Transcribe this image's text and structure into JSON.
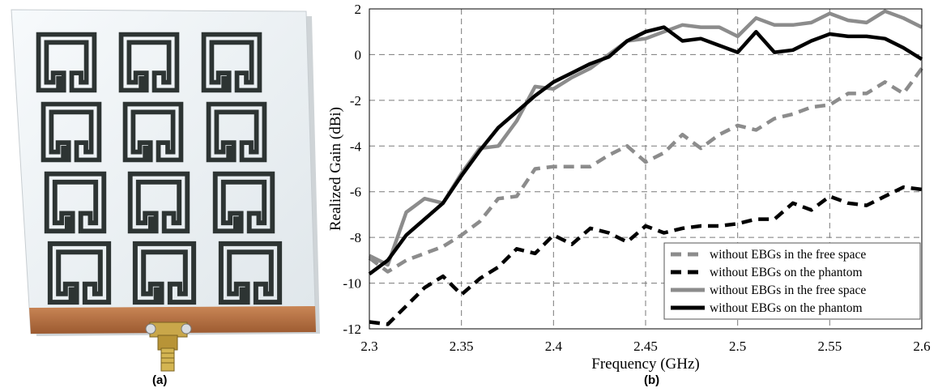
{
  "panels": {
    "a_label": "(a)",
    "b_label": "(b)"
  },
  "colors": {
    "gray": "#8c8c8c",
    "black": "#000000",
    "board": "#f4f7fa",
    "trace": "#2d3433",
    "copper": "#b8703f"
  },
  "chart_data": {
    "type": "line",
    "xlabel": "Frequency (GHz)",
    "ylabel": "Realized Gain (dBi)",
    "xlim": [
      2.3,
      2.6
    ],
    "ylim": [
      -12,
      2
    ],
    "xticks": [
      2.3,
      2.35,
      2.4,
      2.45,
      2.5,
      2.55,
      2.6
    ],
    "xtick_labels": [
      "2.3",
      "2.35",
      "2.4",
      "2.45",
      "2.5",
      "2.55",
      "2.6"
    ],
    "yticks": [
      -12,
      -10,
      -8,
      -6,
      -4,
      -2,
      0,
      2
    ],
    "ytick_labels": [
      "-12",
      "-10",
      "-8",
      "-6",
      "-4",
      "-2",
      "0",
      "2"
    ],
    "grid": true,
    "legend_position": "bottom-right",
    "x": [
      2.3,
      2.31,
      2.32,
      2.33,
      2.34,
      2.35,
      2.36,
      2.37,
      2.38,
      2.39,
      2.4,
      2.41,
      2.42,
      2.43,
      2.44,
      2.45,
      2.46,
      2.47,
      2.48,
      2.49,
      2.5,
      2.51,
      2.52,
      2.53,
      2.54,
      2.55,
      2.56,
      2.57,
      2.58,
      2.59,
      2.6
    ],
    "series": [
      {
        "name": "without EBGs in the free space",
        "style": "dashed",
        "color": "#8c8c8c",
        "values": [
          -8.9,
          -9.5,
          -9.0,
          -8.7,
          -8.4,
          -7.9,
          -7.3,
          -6.3,
          -6.2,
          -5.0,
          -4.9,
          -4.9,
          -4.9,
          -4.4,
          -4.0,
          -4.7,
          -4.3,
          -3.5,
          -4.1,
          -3.5,
          -3.1,
          -3.3,
          -2.8,
          -2.6,
          -2.3,
          -2.2,
          -1.7,
          -1.7,
          -1.2,
          -1.7,
          -0.6
        ]
      },
      {
        "name": "without EBGs on the phantom",
        "style": "dashed",
        "color": "#000000",
        "values": [
          -11.7,
          -11.8,
          -11.0,
          -10.2,
          -9.7,
          -10.5,
          -9.8,
          -9.3,
          -8.5,
          -8.7,
          -7.9,
          -8.3,
          -7.6,
          -7.8,
          -8.2,
          -7.5,
          -7.8,
          -7.6,
          -7.5,
          -7.5,
          -7.4,
          -7.2,
          -7.2,
          -6.5,
          -6.8,
          -6.2,
          -6.5,
          -6.6,
          -6.2,
          -5.8,
          -5.9
        ]
      },
      {
        "name": "without EBGs in the free space",
        "style": "solid",
        "color": "#8c8c8c",
        "values": [
          -8.8,
          -9.2,
          -6.9,
          -6.3,
          -6.5,
          -5.2,
          -4.1,
          -4.0,
          -2.9,
          -1.4,
          -1.5,
          -1.0,
          -0.6,
          0.0,
          0.6,
          0.7,
          1.0,
          1.3,
          1.2,
          1.2,
          0.8,
          1.6,
          1.3,
          1.3,
          1.4,
          1.8,
          1.5,
          1.4,
          1.9,
          1.6,
          1.2
        ]
      },
      {
        "name": "without EBGs on the phantom",
        "style": "solid",
        "color": "#000000",
        "values": [
          -9.6,
          -9.0,
          -7.9,
          -7.2,
          -6.5,
          -5.3,
          -4.2,
          -3.2,
          -2.5,
          -1.8,
          -1.2,
          -0.8,
          -0.4,
          -0.1,
          0.6,
          1.0,
          1.2,
          0.6,
          0.7,
          0.4,
          0.1,
          1.0,
          0.1,
          0.2,
          0.6,
          0.9,
          0.8,
          0.8,
          0.7,
          0.3,
          -0.2
        ]
      }
    ]
  }
}
